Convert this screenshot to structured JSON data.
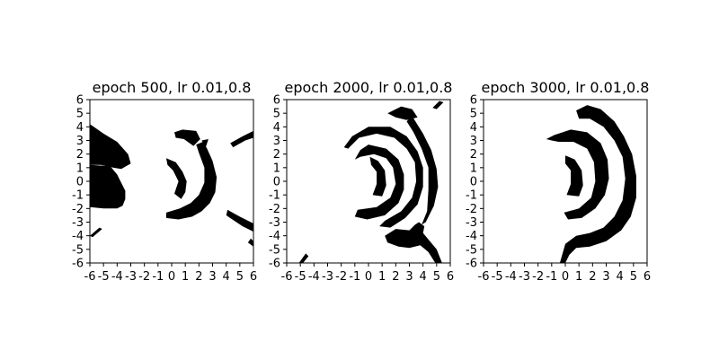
{
  "chart_data": [
    {
      "type": "heatmap",
      "title": "epoch 500, lr 0.01,0.8",
      "xlim": [
        -6,
        6
      ],
      "ylim": [
        -6,
        6
      ],
      "xticks": [
        "-6",
        "-5",
        "-4",
        "-3",
        "-2",
        "-1",
        "0",
        "1",
        "2",
        "3",
        "4",
        "5",
        "6"
      ],
      "yticks": [
        "-6",
        "-5",
        "-4",
        "-3",
        "-2",
        "-1",
        "0",
        "1",
        "2",
        "3",
        "4",
        "5",
        "6"
      ],
      "colors": {
        "class_1": "#000000",
        "class_0": "#ffffff"
      },
      "regions": [
        {
          "shape": "polygon",
          "points": [
            [
              -6,
              4.2
            ],
            [
              -5,
              3.5
            ],
            [
              -4,
              2.9
            ],
            [
              -3.2,
              2.0
            ],
            [
              -3,
              1.3
            ],
            [
              -3.7,
              0.9
            ],
            [
              -4.3,
              1.0
            ],
            [
              -5.2,
              1.2
            ],
            [
              -6,
              1.2
            ]
          ]
        },
        {
          "shape": "polygon",
          "points": [
            [
              -6,
              1.2
            ],
            [
              -4.5,
              1.1
            ],
            [
              -4.0,
              0.5
            ],
            [
              -3.4,
              -0.7
            ],
            [
              -3.4,
              -1.3
            ],
            [
              -3.6,
              -1.8
            ],
            [
              -4,
              -2.0
            ],
            [
              -5,
              -2.0
            ],
            [
              -6,
              -1.9
            ]
          ]
        },
        {
          "shape": "polygon",
          "points": [
            [
              -6,
              3.2
            ],
            [
              -5.5,
              2.6
            ],
            [
              -5,
              2.7
            ],
            [
              -5.5,
              3.1
            ]
          ]
        },
        {
          "shape": "polygon",
          "points": [
            [
              -6,
              -4.0
            ],
            [
              -5.3,
              -3.4
            ],
            [
              -5.1,
              -3.5
            ],
            [
              -5.8,
              -4.1
            ]
          ]
        },
        {
          "shape": "polygon",
          "points": [
            [
              -0.4,
              1.7
            ],
            [
              0.3,
              1.4
            ],
            [
              0.8,
              0.7
            ],
            [
              1.1,
              0.0
            ],
            [
              1.0,
              -0.8
            ],
            [
              0.7,
              -1.3
            ],
            [
              0.2,
              -0.9
            ],
            [
              0.5,
              0.0
            ],
            [
              0.1,
              0.8
            ],
            [
              -0.3,
              1.2
            ]
          ]
        },
        {
          "shape": "polygon",
          "points": [
            [
              0.2,
              3.6
            ],
            [
              0.8,
              3.8
            ],
            [
              1.8,
              3.7
            ],
            [
              2.1,
              3.1
            ],
            [
              1.6,
              2.6
            ],
            [
              0.9,
              3.1
            ],
            [
              0.3,
              3.2
            ]
          ]
        },
        {
          "shape": "polygon",
          "points": [
            [
              2.3,
              2.9
            ],
            [
              2.6,
              2.4
            ],
            [
              3.0,
              1.5
            ],
            [
              3.3,
              0.3
            ],
            [
              3.2,
              -0.8
            ],
            [
              2.8,
              -1.6
            ],
            [
              2.2,
              -2.2
            ],
            [
              1.5,
              -2.6
            ],
            [
              0.5,
              -2.8
            ],
            [
              -0.4,
              -2.7
            ],
            [
              -0.4,
              -2.3
            ],
            [
              0.6,
              -2.0
            ],
            [
              1.4,
              -1.6
            ],
            [
              2.0,
              -1.0
            ],
            [
              2.4,
              -0.1
            ],
            [
              2.4,
              1.0
            ],
            [
              2.0,
              2.1
            ],
            [
              1.8,
              2.7
            ]
          ]
        },
        {
          "shape": "polygon",
          "points": [
            [
              2.2,
              3.0
            ],
            [
              2.7,
              3.1
            ],
            [
              2.5,
              2.5
            ]
          ]
        },
        {
          "shape": "polygon",
          "points": [
            [
              4.3,
              2.8
            ],
            [
              5.2,
              3.3
            ],
            [
              6,
              3.7
            ],
            [
              6,
              3.2
            ],
            [
              5.4,
              3.0
            ],
            [
              4.5,
              2.5
            ]
          ]
        },
        {
          "shape": "polygon",
          "points": [
            [
              4.1,
              -2.1
            ],
            [
              5.0,
              -2.6
            ],
            [
              6,
              -3.1
            ],
            [
              6,
              -3.7
            ],
            [
              5.2,
              -3.3
            ],
            [
              4.0,
              -2.5
            ]
          ]
        },
        {
          "shape": "polygon",
          "points": [
            [
              5.8,
              -4.2
            ],
            [
              6,
              -4.4
            ],
            [
              6,
              -4.8
            ],
            [
              5.6,
              -4.5
            ]
          ]
        }
      ]
    },
    {
      "type": "heatmap",
      "title": "epoch 2000, lr 0.01,0.8",
      "xlim": [
        -6,
        6
      ],
      "ylim": [
        -6,
        6
      ],
      "xticks": [
        "-6",
        "-5",
        "-4",
        "-3",
        "-2",
        "-1",
        "0",
        "1",
        "2",
        "3",
        "4",
        "5",
        "6"
      ],
      "yticks": [
        "-6",
        "-5",
        "-4",
        "-3",
        "-2",
        "-1",
        "0",
        "1",
        "2",
        "3",
        "4",
        "5",
        "6"
      ],
      "colors": {
        "class_1": "#000000",
        "class_0": "#ffffff"
      },
      "regions": [
        {
          "shape": "polygon",
          "points": [
            [
              0.1,
              1.8
            ],
            [
              0.7,
              1.5
            ],
            [
              1.2,
              0.8
            ],
            [
              1.3,
              -0.3
            ],
            [
              1.0,
              -1.1
            ],
            [
              0.3,
              -1.0
            ],
            [
              0.6,
              -0.2
            ],
            [
              0.6,
              0.7
            ],
            [
              0.2,
              1.2
            ]
          ]
        },
        {
          "shape": "polygon",
          "points": [
            [
              0.0,
              2.7
            ],
            [
              1.3,
              2.4
            ],
            [
              2.2,
              1.6
            ],
            [
              2.6,
              0.5
            ],
            [
              2.6,
              -0.6
            ],
            [
              2.2,
              -1.6
            ],
            [
              1.2,
              -2.5
            ],
            [
              -0.1,
              -2.8
            ],
            [
              -1.0,
              -2.6
            ],
            [
              -0.8,
              -2.1
            ],
            [
              0.6,
              -1.9
            ],
            [
              1.6,
              -1.2
            ],
            [
              2.0,
              -0.2
            ],
            [
              1.8,
              1.0
            ],
            [
              1.3,
              1.7
            ],
            [
              0.4,
              2.0
            ],
            [
              -0.6,
              1.8
            ],
            [
              -1.0,
              1.6
            ],
            [
              -0.6,
              2.3
            ]
          ]
        },
        {
          "shape": "polygon",
          "points": [
            [
              -1.8,
              2.5
            ],
            [
              -1.2,
              3.3
            ],
            [
              0.0,
              4.0
            ],
            [
              1.6,
              4.0
            ],
            [
              2.8,
              3.3
            ],
            [
              3.6,
              2.2
            ],
            [
              4.0,
              1.0
            ],
            [
              4.0,
              -0.4
            ],
            [
              3.6,
              -1.7
            ],
            [
              2.7,
              -2.7
            ],
            [
              1.6,
              -3.4
            ],
            [
              0.8,
              -3.3
            ],
            [
              1.2,
              -2.9
            ],
            [
              2.4,
              -2.2
            ],
            [
              3.2,
              -1.2
            ],
            [
              3.5,
              0.0
            ],
            [
              3.4,
              1.4
            ],
            [
              2.8,
              2.4
            ],
            [
              1.9,
              3.2
            ],
            [
              0.6,
              3.5
            ],
            [
              -0.7,
              3.2
            ],
            [
              -1.5,
              2.4
            ]
          ]
        },
        {
          "shape": "polygon",
          "points": [
            [
              3.2,
              4.8
            ],
            [
              4.0,
              3.5
            ],
            [
              4.6,
              2.3
            ],
            [
              5.0,
              0.9
            ],
            [
              5.1,
              -0.4
            ],
            [
              4.8,
              -1.8
            ],
            [
              4.2,
              -3.0
            ],
            [
              3.9,
              -3.2
            ],
            [
              4.3,
              -2.2
            ],
            [
              4.4,
              -0.6
            ],
            [
              4.4,
              1.0
            ],
            [
              3.9,
              2.4
            ],
            [
              3.3,
              3.6
            ],
            [
              2.8,
              4.4
            ]
          ]
        },
        {
          "shape": "polygon",
          "points": [
            [
              1.4,
              5.0
            ],
            [
              2.4,
              5.5
            ],
            [
              3.2,
              5.3
            ],
            [
              3.6,
              4.7
            ],
            [
              2.8,
              4.5
            ],
            [
              2.0,
              4.7
            ]
          ]
        },
        {
          "shape": "polygon",
          "points": [
            [
              4.7,
              5.4
            ],
            [
              5.2,
              5.9
            ],
            [
              5.5,
              5.8
            ],
            [
              5.0,
              5.3
            ]
          ]
        },
        {
          "shape": "polygon",
          "points": [
            [
              1.2,
              -4.0
            ],
            [
              2.0,
              -3.5
            ],
            [
              3.0,
              -3.6
            ],
            [
              3.4,
              -3.2
            ],
            [
              3.7,
              -3.0
            ],
            [
              4.1,
              -3.3
            ],
            [
              4.0,
              -3.8
            ],
            [
              4.5,
              -4.4
            ],
            [
              5.0,
              -5.0
            ],
            [
              5.4,
              -6.0
            ],
            [
              4.9,
              -6.0
            ],
            [
              4.4,
              -5.2
            ],
            [
              3.8,
              -4.7
            ],
            [
              3.0,
              -4.9
            ],
            [
              2.2,
              -4.8
            ],
            [
              1.4,
              -4.5
            ]
          ]
        },
        {
          "shape": "polygon",
          "points": [
            [
              -5.1,
              -6.0
            ],
            [
              -4.6,
              -5.3
            ],
            [
              -4.4,
              -5.5
            ],
            [
              -4.8,
              -6.0
            ]
          ]
        }
      ]
    },
    {
      "type": "heatmap",
      "title": "epoch 3000, lr 0.01,0.8",
      "xlim": [
        -6,
        6
      ],
      "ylim": [
        -6,
        6
      ],
      "xticks": [
        "-6",
        "-5",
        "-4",
        "-3",
        "-2",
        "-1",
        "0",
        "1",
        "2",
        "3",
        "4",
        "5",
        "6"
      ],
      "yticks": [
        "-6",
        "-5",
        "-4",
        "-3",
        "-2",
        "-1",
        "0",
        "1",
        "2",
        "3",
        "4",
        "5",
        "6"
      ],
      "colors": {
        "class_1": "#000000",
        "class_0": "#ffffff"
      },
      "regions": [
        {
          "shape": "polygon",
          "points": [
            [
              0.0,
              1.9
            ],
            [
              0.7,
              1.6
            ],
            [
              1.2,
              0.8
            ],
            [
              1.3,
              -0.3
            ],
            [
              1.0,
              -1.1
            ],
            [
              0.1,
              -1.0
            ],
            [
              0.4,
              -0.2
            ],
            [
              0.4,
              0.8
            ],
            [
              0.0,
              1.3
            ]
          ]
        },
        {
          "shape": "polygon",
          "points": [
            [
              -0.8,
              3.4
            ],
            [
              0.4,
              3.8
            ],
            [
              1.6,
              3.6
            ],
            [
              2.6,
              2.8
            ],
            [
              3.1,
              1.6
            ],
            [
              3.2,
              0.2
            ],
            [
              2.9,
              -1.0
            ],
            [
              2.2,
              -2.0
            ],
            [
              1.2,
              -2.7
            ],
            [
              0.2,
              -2.8
            ],
            [
              -0.1,
              -2.3
            ],
            [
              1.0,
              -2.0
            ],
            [
              1.9,
              -1.2
            ],
            [
              2.2,
              0.0
            ],
            [
              2.1,
              1.4
            ],
            [
              1.6,
              2.4
            ],
            [
              0.6,
              2.9
            ],
            [
              -0.5,
              2.9
            ],
            [
              -1.0,
              3.0
            ],
            [
              -1.4,
              3.1
            ]
          ]
        },
        {
          "shape": "polygon",
          "points": [
            [
              0.8,
              5.2
            ],
            [
              1.6,
              5.6
            ],
            [
              2.6,
              5.3
            ],
            [
              3.6,
              4.4
            ],
            [
              4.3,
              3.3
            ],
            [
              4.9,
              2.0
            ],
            [
              5.2,
              0.4
            ],
            [
              5.2,
              -1.2
            ],
            [
              4.8,
              -2.6
            ],
            [
              4.1,
              -3.6
            ],
            [
              3.0,
              -4.4
            ],
            [
              1.8,
              -4.8
            ],
            [
              0.8,
              -4.9
            ],
            [
              0.3,
              -5.4
            ],
            [
              0.0,
              -6.0
            ],
            [
              -0.4,
              -6.0
            ],
            [
              0.0,
              -4.6
            ],
            [
              0.8,
              -4.0
            ],
            [
              1.8,
              -3.8
            ],
            [
              2.8,
              -3.4
            ],
            [
              3.6,
              -2.6
            ],
            [
              4.2,
              -1.4
            ],
            [
              4.4,
              0.2
            ],
            [
              4.2,
              1.8
            ],
            [
              3.6,
              3.0
            ],
            [
              2.8,
              4.0
            ],
            [
              1.8,
              4.6
            ],
            [
              1.0,
              4.6
            ]
          ]
        }
      ]
    }
  ]
}
